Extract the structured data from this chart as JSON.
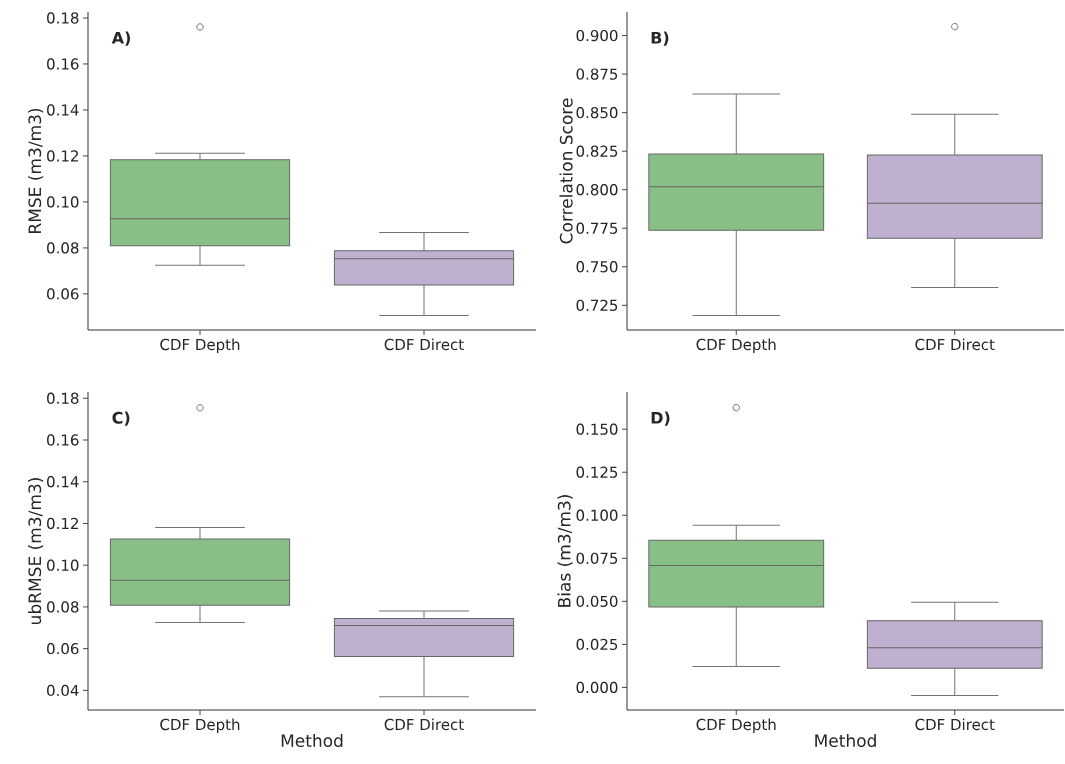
{
  "chart_data": [
    {
      "type": "box",
      "categories": [
        "CDF Depth",
        "CDF Direct"
      ],
      "colors": [
        "#88bf86",
        "#bfb0cf"
      ],
      "ylabel": "RMSE (m3/m3)",
      "ylim": [
        0.0443,
        0.1826
      ],
      "yticks": [
        0.06,
        0.08,
        {
          "value": 0.1,
          "label": "0.10"
        },
        0.12,
        0.14,
        0.16,
        0.18
      ],
      "annotations": [
        "A)"
      ],
      "boxes": [
        {
          "low": 0.0725,
          "q1": 0.0809,
          "median": 0.0927,
          "q3": 0.1183,
          "high": 0.1212,
          "outliers": [
            0.1761
          ]
        },
        {
          "low": 0.0506,
          "q1": 0.0639,
          "median": 0.0753,
          "q3": 0.0788,
          "high": 0.0867
        }
      ]
    },
    {
      "type": "box",
      "categories": [
        "CDF Depth",
        "CDF Direct"
      ],
      "colors": [
        "#88bf86",
        "#bfb0cf"
      ],
      "ylabel": "Correlation Score",
      "ylim": [
        0.709,
        0.9153
      ],
      "yticks": [
        0.725,
        {
          "value": 0.75,
          "label": "0.750"
        },
        0.775,
        {
          "value": 0.8,
          "label": "0.800"
        },
        0.825,
        {
          "value": 0.85,
          "label": "0.850"
        },
        0.875,
        {
          "value": 0.9,
          "label": "0.900"
        }
      ],
      "annotations": [
        "B)"
      ],
      "boxes": [
        {
          "low": 0.7184,
          "q1": 0.7737,
          "median": 0.8019,
          "q3": 0.8231,
          "high": 0.8621
        },
        {
          "low": 0.7365,
          "q1": 0.7686,
          "median": 0.7912,
          "q3": 0.8225,
          "high": 0.849,
          "outliers": [
            0.9058
          ]
        }
      ]
    },
    {
      "type": "box",
      "categories": [
        "CDF Depth",
        "CDF Direct"
      ],
      "colors": [
        "#88bf86",
        "#bfb0cf"
      ],
      "xlabel": "Method",
      "ylabel": "ubRMSE (m3/m3)",
      "ylim": [
        0.0306,
        0.183
      ],
      "yticks": [
        0.04,
        0.06,
        0.08,
        {
          "value": 0.1,
          "label": "0.10"
        },
        0.12,
        0.14,
        0.16,
        0.18
      ],
      "annotations": [
        "C)"
      ],
      "boxes": [
        {
          "low": 0.0725,
          "q1": 0.0808,
          "median": 0.0928,
          "q3": 0.1126,
          "high": 0.1181,
          "outliers": [
            0.1754
          ]
        },
        {
          "low": 0.037,
          "q1": 0.0562,
          "median": 0.0711,
          "q3": 0.0745,
          "high": 0.078
        }
      ]
    },
    {
      "type": "box",
      "categories": [
        "CDF Depth",
        "CDF Direct"
      ],
      "colors": [
        "#88bf86",
        "#bfb0cf"
      ],
      "xlabel": "Method",
      "ylabel": "Bias (m3/m3)",
      "ylim": [
        -0.0131,
        0.1716
      ],
      "yticks": [
        {
          "value": 0,
          "label": "0.000"
        },
        0.025,
        {
          "value": 0.05,
          "label": "0.050"
        },
        0.075,
        {
          "value": 0.1,
          "label": "0.100"
        },
        0.125,
        {
          "value": 0.15,
          "label": "0.150"
        }
      ],
      "annotations": [
        "D)"
      ],
      "boxes": [
        {
          "low": 0.0121,
          "q1": 0.0467,
          "median": 0.0708,
          "q3": 0.0855,
          "high": 0.0942,
          "outliers": [
            0.1625
          ]
        },
        {
          "low": -0.0047,
          "q1": 0.0111,
          "median": 0.023,
          "q3": 0.0388,
          "high": 0.0495
        }
      ]
    }
  ]
}
